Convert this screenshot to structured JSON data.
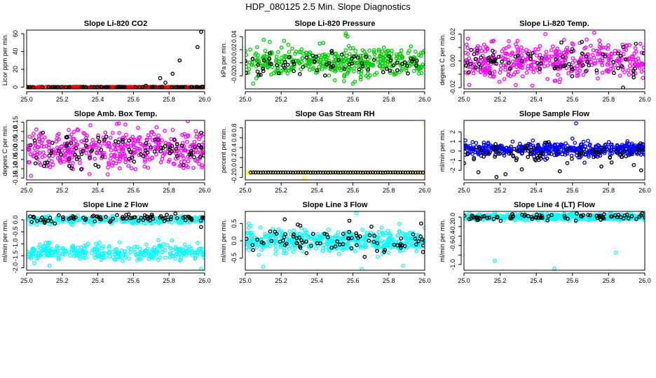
{
  "page_title": "HDP_080125  2.5 Min. Slope Diagnostics",
  "colors": {
    "black": "#000000",
    "red": "#ff0000",
    "green": "#00cc00",
    "magenta": "#ff00ff",
    "yellow": "#ffff00",
    "blue": "#0000ff",
    "cyan": "#00ffff"
  },
  "chart_data": [
    {
      "type": "scatter",
      "title": "Slope Li-820 CO2",
      "xlabel": "",
      "ylabel": "Licor ppm per min.",
      "xlim": [
        25.0,
        26.0
      ],
      "ylim": [
        -2,
        64
      ],
      "xticks": [
        25.0,
        25.2,
        25.4,
        25.6,
        25.8,
        26.0
      ],
      "xtick_labels": [
        "25.0",
        "25.2",
        "25.4",
        "25.6",
        "25.8",
        "26.0"
      ],
      "yticks": [
        0,
        20,
        40,
        60
      ],
      "ytick_labels": [
        "0",
        "20",
        "40",
        "60"
      ],
      "series": [
        {
          "name": "valid",
          "color": "red",
          "gen": {
            "x0": 25.0,
            "x1": 26.0,
            "n": 320,
            "center": 0,
            "spread": 0.4,
            "seed": 11,
            "dist": "uniform"
          }
        },
        {
          "name": "flagged",
          "color": "black",
          "gen": {
            "x0": 25.0,
            "x1": 26.0,
            "n": 80,
            "center": 0,
            "spread": 0.3,
            "seed": 12,
            "dist": "uniform"
          },
          "points": [
            [
              25.67,
              1.5
            ],
            [
              25.75,
              10
            ],
            [
              25.78,
              5
            ],
            [
              25.82,
              15
            ],
            [
              25.86,
              30
            ],
            [
              25.96,
              45
            ],
            [
              25.98,
              62
            ]
          ]
        }
      ]
    },
    {
      "type": "scatter",
      "title": "Slope Li-820 Pressure",
      "xlabel": "",
      "ylabel": "kPa per min.",
      "xlim": [
        25.0,
        26.0
      ],
      "ylim": [
        -0.04,
        0.05
      ],
      "xticks": [
        25.0,
        25.2,
        25.4,
        25.6,
        25.8,
        26.0
      ],
      "xtick_labels": [
        "25.0",
        "25.2",
        "25.4",
        "25.6",
        "25.8",
        "26.0"
      ],
      "yticks": [
        -0.02,
        0.0,
        0.02,
        0.04
      ],
      "ytick_labels": [
        "-0.02",
        "0.00",
        "0.02",
        "0.04"
      ],
      "series": [
        {
          "name": "valid",
          "color": "green",
          "gen": {
            "x0": 25.0,
            "x1": 26.0,
            "n": 420,
            "center": 0.002,
            "spread": 0.011,
            "seed": 21,
            "dist": "normal"
          },
          "points": [
            [
              25.56,
              0.045
            ],
            [
              25.56,
              0.042
            ],
            [
              25.57,
              0.04
            ],
            [
              25.55,
              -0.028
            ],
            [
              25.6,
              -0.032
            ]
          ]
        },
        {
          "name": "flagged",
          "color": "black",
          "gen": {
            "x0": 25.0,
            "x1": 26.0,
            "n": 70,
            "center": -0.002,
            "spread": 0.009,
            "seed": 22,
            "dist": "normal"
          }
        }
      ]
    },
    {
      "type": "scatter",
      "title": "Slope Li-820 Temp.",
      "xlabel": "",
      "ylabel": "degees C per min.",
      "xlim": [
        25.0,
        26.0
      ],
      "ylim": [
        -0.021,
        0.023
      ],
      "xticks": [
        25.0,
        25.2,
        25.4,
        25.6,
        25.8,
        26.0
      ],
      "xtick_labels": [
        "25.0",
        "25.2",
        "25.4",
        "25.6",
        "25.8",
        "26.0"
      ],
      "yticks": [
        -0.02,
        -0.01,
        0.0,
        0.01,
        0.02
      ],
      "ytick_labels": [
        "-0.02",
        "",
        "0.00",
        "",
        "0.02"
      ],
      "series": [
        {
          "name": "valid",
          "color": "magenta",
          "gen": {
            "x0": 25.0,
            "x1": 26.0,
            "n": 420,
            "center": 0.0,
            "spread": 0.007,
            "seed": 31,
            "dist": "normal"
          },
          "points": [
            [
              25.72,
              0.021
            ],
            [
              25.45,
              0.02
            ],
            [
              25.03,
              -0.018
            ]
          ]
        },
        {
          "name": "flagged",
          "color": "black",
          "gen": {
            "x0": 25.0,
            "x1": 26.0,
            "n": 80,
            "center": 0.0,
            "spread": 0.007,
            "seed": 32,
            "dist": "normal"
          },
          "points": [
            [
              25.88,
              -0.02
            ]
          ]
        }
      ]
    },
    {
      "type": "scatter",
      "title": "Slope Amb. Box Temp.",
      "xlabel": "",
      "ylabel": "degees C per min.",
      "xlim": [
        25.0,
        26.0
      ],
      "ylim": [
        -0.16,
        0.16
      ],
      "xticks": [
        25.0,
        25.2,
        25.4,
        25.6,
        25.8,
        26.0
      ],
      "xtick_labels": [
        "25.0",
        "25.2",
        "25.4",
        "25.6",
        "25.8",
        "26.0"
      ],
      "yticks": [
        -0.15,
        -0.1,
        -0.05,
        0.0,
        0.05,
        0.1,
        0.15
      ],
      "ytick_labels": [
        "-0.15",
        "-0.10",
        "-0.05",
        "0.00",
        "0.05",
        "0.10",
        "0.15"
      ],
      "series": [
        {
          "name": "valid",
          "color": "magenta",
          "gen": {
            "x0": 25.0,
            "x1": 26.0,
            "n": 420,
            "center": 0.0,
            "spread": 0.055,
            "seed": 41,
            "dist": "normal"
          }
        },
        {
          "name": "flagged",
          "color": "black",
          "gen": {
            "x0": 25.0,
            "x1": 26.0,
            "n": 90,
            "center": 0.0,
            "spread": 0.05,
            "seed": 42,
            "dist": "normal"
          }
        }
      ]
    },
    {
      "type": "scatter",
      "title": "Slope Gas Stream RH",
      "xlabel": "",
      "ylabel": "percent per min.",
      "xlim": [
        25.0,
        26.0
      ],
      "ylim": [
        -0.25,
        0.95
      ],
      "xticks": [
        25.0,
        25.2,
        25.4,
        25.6,
        25.8,
        26.0
      ],
      "xtick_labels": [
        "25.0",
        "25.2",
        "25.4",
        "25.6",
        "25.8",
        "26.0"
      ],
      "yticks": [
        -0.2,
        0.0,
        0.2,
        0.4,
        0.6,
        0.8
      ],
      "ytick_labels": [
        "-0.2",
        "0.0",
        "0.2",
        "0.4",
        "0.6",
        "0.8"
      ],
      "series": [
        {
          "name": "valid",
          "color": "yellow",
          "gen": {
            "x0": 25.0,
            "x1": 26.0,
            "n": 100,
            "center": -0.1,
            "spread": 0.003,
            "seed": 51,
            "dist": "uniform"
          },
          "points": [
            [
              25.33,
              -0.21
            ],
            [
              26.0,
              0.88
            ]
          ]
        },
        {
          "name": "flagged",
          "color": "black",
          "gen": {
            "x0": 25.03,
            "x1": 25.99,
            "n": 70,
            "center": -0.1,
            "spread": 0.002,
            "seed": 52,
            "dist": "grid"
          }
        }
      ]
    },
    {
      "type": "scatter",
      "title": "Slope Sample Flow",
      "xlabel": "",
      "ylabel": "ml/min per min.",
      "xlim": [
        25.0,
        26.0
      ],
      "ylim": [
        -3.0,
        3.2
      ],
      "xticks": [
        25.0,
        25.2,
        25.4,
        25.6,
        25.8,
        26.0
      ],
      "xtick_labels": [
        "25.0",
        "25.2",
        "25.4",
        "25.6",
        "25.8",
        "26.0"
      ],
      "yticks": [
        -2,
        -1,
        0,
        1,
        2
      ],
      "ytick_labels": [
        "-2",
        "-1",
        "0",
        "1",
        "2"
      ],
      "series": [
        {
          "name": "valid",
          "color": "blue",
          "gen": {
            "x0": 25.0,
            "x1": 26.0,
            "n": 480,
            "center": 0.2,
            "spread": 0.35,
            "seed": 61,
            "dist": "normal"
          },
          "points": [
            [
              25.62,
              2.9
            ],
            [
              25.6,
              1.3
            ],
            [
              25.45,
              -0.9
            ]
          ]
        },
        {
          "name": "flagged",
          "color": "black",
          "gen": {
            "x0": 25.0,
            "x1": 26.0,
            "n": 80,
            "center": -0.2,
            "spread": 0.5,
            "seed": 62,
            "dist": "normal"
          },
          "points": [
            [
              25.08,
              -2.2
            ],
            [
              25.18,
              -2.7
            ],
            [
              25.23,
              -2.4
            ],
            [
              25.32,
              -1.9
            ],
            [
              25.53,
              -2.1
            ],
            [
              25.98,
              -2.0
            ],
            [
              25.76,
              -1.6
            ]
          ]
        }
      ]
    },
    {
      "type": "scatter",
      "title": "Slope Line 2 Flow",
      "xlabel": "",
      "ylabel": "ml/min per min.",
      "xlim": [
        25.0,
        26.0
      ],
      "ylim": [
        -2.1,
        0.35
      ],
      "xticks": [
        25.0,
        25.2,
        25.4,
        25.6,
        25.8,
        26.0
      ],
      "xtick_labels": [
        "25.0",
        "25.2",
        "25.4",
        "25.6",
        "25.8",
        "26.0"
      ],
      "yticks": [
        -2.0,
        -1.5,
        -1.0,
        -0.5,
        0.0
      ],
      "ytick_labels": [
        "-2.0",
        "-1.5",
        "-1.0",
        "-0.5",
        "0.0"
      ],
      "series": [
        {
          "name": "valid-upper",
          "color": "cyan",
          "gen": {
            "x0": 25.0,
            "x1": 26.0,
            "n": 260,
            "center": 0.0,
            "spread": 0.08,
            "seed": 71,
            "dist": "normal"
          }
        },
        {
          "name": "valid-lower",
          "color": "cyan",
          "gen": {
            "x0": 25.0,
            "x1": 26.0,
            "n": 300,
            "center": -1.35,
            "spread": 0.17,
            "seed": 72,
            "dist": "normal"
          },
          "points": [
            [
              25.98,
              -2.05
            ]
          ]
        },
        {
          "name": "flagged",
          "color": "black",
          "gen": {
            "x0": 25.0,
            "x1": 26.0,
            "n": 90,
            "center": 0.08,
            "spread": 0.08,
            "seed": 73,
            "dist": "normal"
          },
          "points": [
            [
              25.98,
              -0.3
            ]
          ]
        }
      ]
    },
    {
      "type": "scatter",
      "title": "Slope Line 3 Flow",
      "xlabel": "",
      "ylabel": "ml/min per min.",
      "xlim": [
        25.0,
        26.0
      ],
      "ylim": [
        -0.85,
        0.85
      ],
      "xticks": [
        25.0,
        25.2,
        25.4,
        25.6,
        25.8,
        26.0
      ],
      "xtick_labels": [
        "25.0",
        "25.2",
        "25.4",
        "25.6",
        "25.8",
        "26.0"
      ],
      "yticks": [
        -0.5,
        0.0,
        0.5
      ],
      "ytick_labels": [
        "-0.5",
        "0.0",
        "0.5"
      ],
      "series": [
        {
          "name": "valid",
          "color": "cyan",
          "gen": {
            "x0": 25.0,
            "x1": 26.0,
            "n": 460,
            "center": 0.0,
            "spread": 0.16,
            "seed": 81,
            "dist": "normal"
          },
          "points": [
            [
              25.62,
              0.8
            ],
            [
              25.65,
              -0.82
            ],
            [
              25.1,
              -0.75
            ],
            [
              25.88,
              -0.72
            ],
            [
              25.02,
              0.5
            ]
          ]
        },
        {
          "name": "flagged",
          "color": "black",
          "gen": {
            "x0": 25.0,
            "x1": 26.0,
            "n": 80,
            "center": -0.02,
            "spread": 0.18,
            "seed": 82,
            "dist": "normal"
          },
          "points": [
            [
              25.22,
              0.62
            ],
            [
              25.58,
              0.58
            ],
            [
              25.98,
              0.5
            ]
          ]
        }
      ]
    },
    {
      "type": "scatter",
      "title": "Slope Line 4 (LT) Flow",
      "xlabel": "",
      "ylabel": "ml/min per min.",
      "xlim": [
        25.0,
        26.0
      ],
      "ylim": [
        -1.12,
        0.12
      ],
      "xticks": [
        25.0,
        25.2,
        25.4,
        25.6,
        25.8,
        26.0
      ],
      "xtick_labels": [
        "25.0",
        "25.2",
        "25.4",
        "25.6",
        "25.8",
        "26.0"
      ],
      "yticks": [
        -1.0,
        -0.8,
        -0.6,
        -0.4,
        -0.2,
        0.0
      ],
      "ytick_labels": [
        "-1.0",
        "",
        "-0.6",
        "-0.4",
        "-0.2",
        "0.0"
      ],
      "series": [
        {
          "name": "valid",
          "color": "cyan",
          "gen": {
            "x0": 25.0,
            "x1": 26.0,
            "n": 440,
            "center": 0.0,
            "spread": 0.035,
            "seed": 91,
            "dist": "normal"
          },
          "points": [
            [
              25.17,
              -0.92
            ],
            [
              25.5,
              -1.08
            ],
            [
              25.84,
              -0.75
            ]
          ]
        },
        {
          "name": "flagged",
          "color": "black",
          "gen": {
            "x0": 25.0,
            "x1": 26.0,
            "n": 80,
            "center": 0.0,
            "spread": 0.035,
            "seed": 92,
            "dist": "normal"
          }
        }
      ]
    }
  ]
}
